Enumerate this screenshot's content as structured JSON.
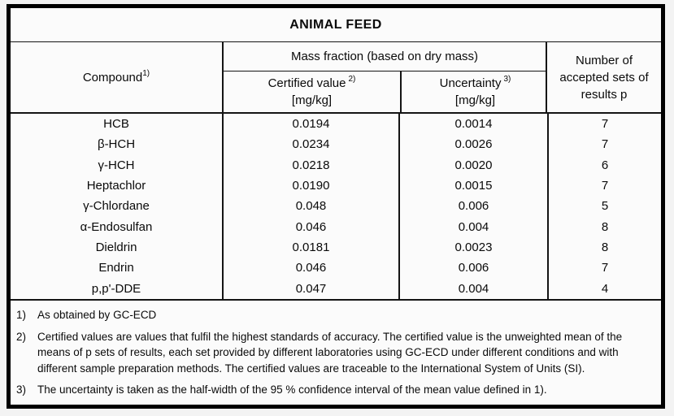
{
  "title": "ANIMAL FEED",
  "table": {
    "headers": {
      "compound": {
        "label": "Compound",
        "sup": "1)"
      },
      "group": "Mass fraction (based on dry mass)",
      "certified": {
        "label": "Certified value",
        "sup": "2)",
        "unit": "[mg/kg]"
      },
      "uncertainty": {
        "label": "Uncertainty",
        "sup": "3)",
        "unit": "[mg/kg]"
      },
      "accepted": "Number of accepted sets of results p"
    },
    "rows": [
      {
        "compound": "HCB",
        "certified": "0.0194",
        "uncertainty": "0.0014",
        "p": "7"
      },
      {
        "compound": "β-HCH",
        "certified": "0.0234",
        "uncertainty": "0.0026",
        "p": "7"
      },
      {
        "compound": "γ-HCH",
        "certified": "0.0218",
        "uncertainty": "0.0020",
        "p": "6"
      },
      {
        "compound": "Heptachlor",
        "certified": "0.0190",
        "uncertainty": "0.0015",
        "p": "7"
      },
      {
        "compound": "γ-Chlordane",
        "certified": "0.048",
        "uncertainty": "0.006",
        "p": "5"
      },
      {
        "compound": "α-Endosulfan",
        "certified": "0.046",
        "uncertainty": "0.004",
        "p": "8"
      },
      {
        "compound": "Dieldrin",
        "certified": "0.0181",
        "uncertainty": "0.0023",
        "p": "8"
      },
      {
        "compound": "Endrin",
        "certified": "0.046",
        "uncertainty": "0.006",
        "p": "7"
      },
      {
        "compound": "p,p'-DDE",
        "certified": "0.047",
        "uncertainty": "0.004",
        "p": "4"
      }
    ]
  },
  "footnotes": [
    {
      "marker": "1)",
      "text": "As obtained by GC-ECD"
    },
    {
      "marker": "2)",
      "text": "Certified values are values that fulfil the highest standards of accuracy. The certified value is the unweighted mean of the means of p sets of results, each set provided by different laboratories using GC-ECD under different conditions and with different sample preparation methods. The certified values are traceable to the International System of Units (SI)."
    },
    {
      "marker": "3)",
      "text": "The uncertainty is taken as the half-width of the 95 % confidence interval of the mean value defined in 1)."
    }
  ]
}
